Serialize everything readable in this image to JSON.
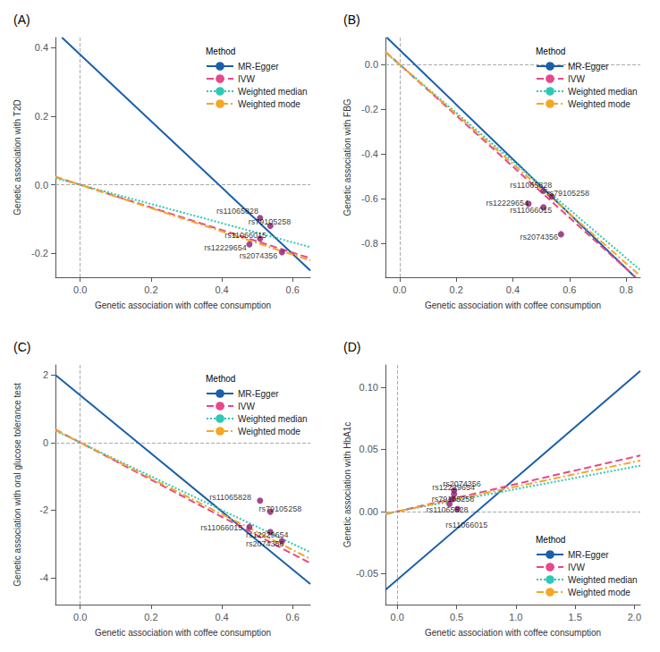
{
  "chart_data": [
    {
      "type": "scatter",
      "title": "(A)",
      "xlabel": "Genetic association with coffee consumption",
      "ylabel": "Genetic association with T2D",
      "xlim": [
        -0.07,
        0.65
      ],
      "ylim": [
        -0.27,
        0.43
      ],
      "xticks": [
        {
          "value": 0.0,
          "label": "0.0"
        },
        0.2,
        0.4,
        0.6
      ],
      "yticks": [
        -0.2,
        {
          "value": 0.0,
          "label": "0.0"
        },
        0.2,
        0.4
      ],
      "grid": false,
      "legend": "upper right",
      "legend_title": "Method",
      "hlines": [
        0.0
      ],
      "vlines": [
        0.0
      ],
      "series": [
        {
          "name": "MR-Egger",
          "type": "line",
          "color": "#1a5fa8",
          "line_style": "solid",
          "x": [
            -0.0515,
            0.65
          ],
          "values": [
            0.429955,
            -0.2505
          ]
        },
        {
          "name": "IVW",
          "type": "line",
          "color": "#e8478c",
          "line_style": "dashed",
          "x": [
            -0.07,
            0.65
          ],
          "values": [
            0.0231,
            -0.2145
          ]
        },
        {
          "name": "Weighted median",
          "type": "line",
          "color": "#2ec8b6",
          "line_style": "dotted",
          "x": [
            -0.07,
            0.65
          ],
          "values": [
            0.0196,
            -0.182
          ]
        },
        {
          "name": "Weighted mode",
          "type": "line",
          "color": "#f5a623",
          "line_style": "dashdot",
          "x": [
            -0.07,
            0.65
          ],
          "values": [
            0.0238,
            -0.221
          ]
        },
        {
          "type": "scatter",
          "color": "#8b1a6b",
          "marker": "circle",
          "x": [
            0.508,
            0.537,
            0.508,
            0.478,
            0.57
          ],
          "values": [
            -0.097,
            -0.12,
            -0.157,
            -0.174,
            -0.197
          ]
        }
      ],
      "annotations": [
        {
          "text": "rs11065828",
          "x": 0.385,
          "y": -0.076
        },
        {
          "text": "rs79105258",
          "x": 0.475,
          "y": -0.108
        },
        {
          "text": "rs11066015",
          "x": 0.408,
          "y": -0.148
        },
        {
          "text": "rs12229654",
          "x": 0.35,
          "y": -0.183
        },
        {
          "text": "rs2074356",
          "x": 0.45,
          "y": -0.208
        }
      ]
    },
    {
      "type": "scatter",
      "title": "(B)",
      "xlabel": "Genetic association with coffee consumption",
      "ylabel": "Genetic association with FBG",
      "xlim": [
        -0.05,
        0.85
      ],
      "ylim": [
        -0.95,
        0.12
      ],
      "xticks": [
        {
          "value": 0.0,
          "label": "0.0"
        },
        0.2,
        0.4,
        0.6,
        0.8
      ],
      "yticks": [
        -0.8,
        -0.6,
        -0.4,
        -0.2,
        {
          "value": 0.0,
          "label": "0.0"
        }
      ],
      "grid": false,
      "legend": "upper right",
      "legend_title": "Method",
      "hlines": [
        0.0
      ],
      "vlines": [
        0.0
      ],
      "series": [
        {
          "name": "MR-Egger",
          "type": "line",
          "color": "#1a5fa8",
          "line_style": "solid",
          "x": [
            -0.045,
            0.8319
          ],
          "values": [
            0.1199,
            -0.949918
          ]
        },
        {
          "name": "IVW",
          "type": "line",
          "color": "#e8478c",
          "line_style": "dashed",
          "x": [
            -0.05,
            0.8333
          ],
          "values": [
            0.057,
            -0.949962
          ]
        },
        {
          "name": "Weighted median",
          "type": "line",
          "color": "#2ec8b6",
          "line_style": "dotted",
          "x": [
            -0.05,
            0.85
          ],
          "values": [
            0.054,
            -0.918
          ]
        },
        {
          "name": "Weighted mode",
          "type": "line",
          "color": "#f5a623",
          "line_style": "dashdot",
          "x": [
            -0.05,
            0.85
          ],
          "values": [
            0.0555,
            -0.9435
          ]
        },
        {
          "type": "scatter",
          "color": "#8b1a6b",
          "marker": "circle",
          "x": [
            0.508,
            0.537,
            0.508,
            0.455,
            0.57
          ],
          "values": [
            -0.565,
            -0.59,
            -0.638,
            -0.622,
            -0.758
          ]
        }
      ],
      "annotations": [
        {
          "text": "rs11065828",
          "x": 0.39,
          "y": -0.54
        },
        {
          "text": "rs79105258",
          "x": 0.52,
          "y": -0.575
        },
        {
          "text": "rs11066015",
          "x": 0.39,
          "y": -0.652
        },
        {
          "text": "rs12229654",
          "x": 0.305,
          "y": -0.617
        },
        {
          "text": "rs2074356",
          "x": 0.425,
          "y": -0.77
        }
      ]
    },
    {
      "type": "scatter",
      "title": "(C)",
      "xlabel": "Genetic association with coffee consumption",
      "ylabel": "Genetic association with oral glucose tolerance test",
      "xlim": [
        -0.07,
        0.65
      ],
      "ylim": [
        -4.8,
        2.3
      ],
      "xticks": [
        {
          "value": 0.0,
          "label": "0.0"
        },
        0.2,
        0.4,
        0.6
      ],
      "yticks": [
        -4.0,
        -2.0,
        0.0,
        2.0
      ],
      "grid": false,
      "legend": "upper right",
      "legend_title": "Method",
      "hlines": [
        0.0
      ],
      "vlines": [
        0.0
      ],
      "series": [
        {
          "name": "MR-Egger",
          "type": "line",
          "color": "#1a5fa8",
          "line_style": "solid",
          "x": [
            -0.07,
            0.65
          ],
          "values": [
            2.002,
            -4.19
          ]
        },
        {
          "name": "IVW",
          "type": "line",
          "color": "#e8478c",
          "line_style": "dashed",
          "x": [
            -0.07,
            0.65
          ],
          "values": [
            0.385,
            -3.575
          ]
        },
        {
          "name": "Weighted median",
          "type": "line",
          "color": "#2ec8b6",
          "line_style": "dotted",
          "x": [
            -0.07,
            0.65
          ],
          "values": [
            0.35,
            -3.25
          ]
        },
        {
          "name": "Weighted mode",
          "type": "line",
          "color": "#f5a623",
          "line_style": "dashdot",
          "x": [
            -0.07,
            0.65
          ],
          "values": [
            0.371,
            -3.445
          ]
        },
        {
          "type": "scatter",
          "color": "#8b1a6b",
          "marker": "circle",
          "x": [
            0.508,
            0.537,
            0.478,
            0.537,
            0.57
          ],
          "values": [
            -1.72,
            -2.05,
            -2.5,
            -2.65,
            -2.92
          ]
        }
      ],
      "annotations": [
        {
          "text": "rs11065828",
          "x": 0.365,
          "y": -1.63
        },
        {
          "text": "rs79105258",
          "x": 0.505,
          "y": -1.97
        },
        {
          "text": "rs11066015",
          "x": 0.34,
          "y": -2.52
        },
        {
          "text": "rs12229654",
          "x": 0.468,
          "y": -2.73
        },
        {
          "text": "rs2074356",
          "x": 0.468,
          "y": -3.0
        }
      ]
    },
    {
      "type": "scatter",
      "title": "(D)",
      "xlabel": "Genetic association with coffee consumption",
      "ylabel": "Genetic association with HbA1c",
      "xlim": [
        -0.1,
        2.05
      ],
      "ylim": [
        -0.075,
        0.118
      ],
      "xticks": [
        {
          "value": 0.0,
          "label": "0.0"
        },
        0.5,
        {
          "value": 1.0,
          "label": "1.0"
        },
        1.5,
        {
          "value": 2.0,
          "label": "2.0"
        }
      ],
      "yticks": [
        -0.05,
        {
          "value": 0.0,
          "label": "0.00"
        },
        0.05,
        {
          "value": 0.1,
          "label": "0.10"
        }
      ],
      "grid": false,
      "legend": "lower right",
      "legend_title": "Method",
      "hlines": [
        0.0
      ],
      "vlines": [
        0.0
      ],
      "series": [
        {
          "name": "MR-Egger",
          "type": "line",
          "color": "#1a5fa8",
          "line_style": "solid",
          "x": [
            -0.1,
            2.05
          ],
          "values": [
            -0.0632,
            0.1131
          ]
        },
        {
          "name": "IVW",
          "type": "line",
          "color": "#e8478c",
          "line_style": "dashed",
          "x": [
            -0.1,
            2.05
          ],
          "values": [
            -0.0022,
            0.0451
          ]
        },
        {
          "name": "Weighted median",
          "type": "line",
          "color": "#2ec8b6",
          "line_style": "dotted",
          "x": [
            -0.1,
            2.05
          ],
          "values": [
            -0.0018,
            0.0369
          ]
        },
        {
          "name": "Weighted mode",
          "type": "line",
          "color": "#f5a623",
          "line_style": "dashdot",
          "x": [
            -0.1,
            2.05
          ],
          "values": [
            -0.002,
            0.041
          ]
        },
        {
          "type": "scatter",
          "color": "#8b1a6b",
          "marker": "circle",
          "x": [
            0.479,
            0.465,
            0.44,
            0.508,
            0.479
          ],
          "values": [
            0.014,
            0.01,
            0.006,
            0.002,
            0.017
          ]
        }
      ],
      "annotations": [
        {
          "text": "rs12229654",
          "x": 0.295,
          "y": 0.019
        },
        {
          "text": "rs79105258",
          "x": 0.29,
          "y": 0.01
        },
        {
          "text": "rs11065828",
          "x": 0.245,
          "y": 0.001
        },
        {
          "text": "rs11066015",
          "x": 0.408,
          "y": -0.011
        },
        {
          "text": "rs2074356",
          "x": 0.385,
          "y": 0.022
        }
      ]
    }
  ]
}
